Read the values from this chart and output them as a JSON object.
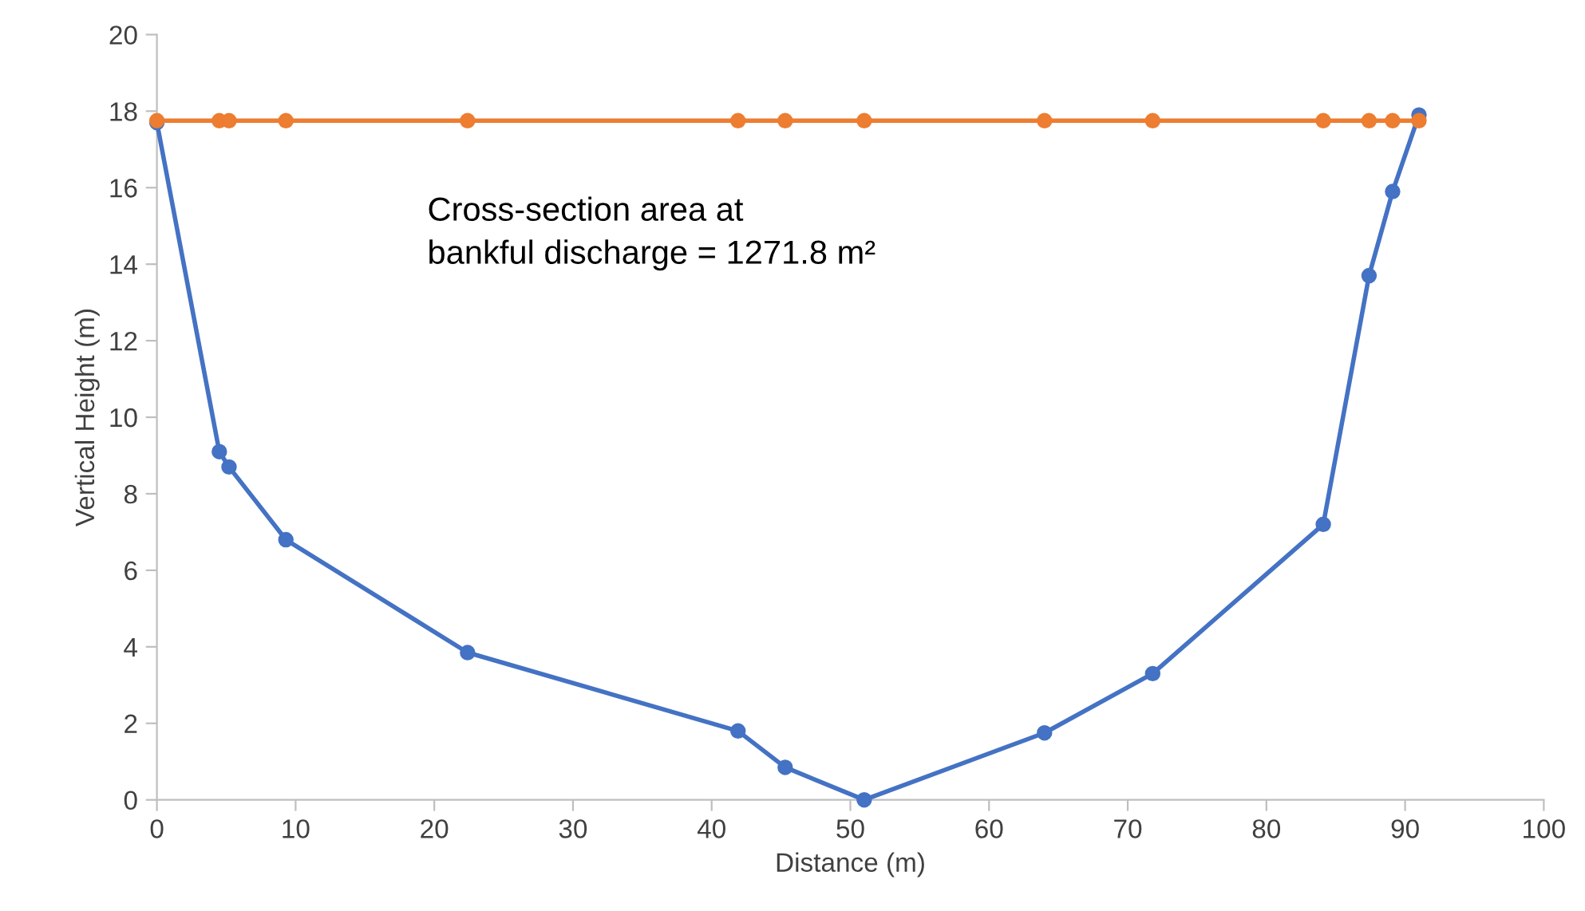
{
  "chart_data": {
    "type": "line",
    "xlabel": "Distance (m)",
    "ylabel": "Vertical Height (m)",
    "xlim": [
      0,
      100
    ],
    "xticks": [
      0,
      10,
      20,
      30,
      40,
      50,
      60,
      70,
      80,
      90,
      100
    ],
    "ylim": [
      0,
      20
    ],
    "yticks": [
      0,
      2,
      4,
      6,
      8,
      10,
      12,
      14,
      16,
      18,
      20
    ],
    "grid": false,
    "marker": "circle",
    "line_style": "solid",
    "annotations": [
      "Cross-section area at\nbankful discharge = 1271.8 m²"
    ],
    "series": [
      {
        "color": "#4472c4",
        "x": [
          0,
          4.5,
          5.2,
          9.3,
          22.4,
          41.9,
          45.3,
          51.0,
          64.0,
          71.8,
          84.1,
          87.4,
          89.1,
          91.0
        ],
        "values": [
          17.7,
          9.1,
          8.7,
          6.8,
          3.85,
          1.8,
          0.85,
          0,
          1.75,
          3.3,
          7.2,
          13.7,
          15.9,
          17.9
        ]
      },
      {
        "color": "#ed7d31",
        "x": [
          0,
          4.5,
          5.2,
          9.3,
          22.4,
          41.9,
          45.3,
          51.0,
          64.0,
          71.8,
          84.1,
          87.4,
          89.1,
          91.0
        ],
        "values": [
          17.75,
          17.75,
          17.75,
          17.75,
          17.75,
          17.75,
          17.75,
          17.75,
          17.75,
          17.75,
          17.75,
          17.75,
          17.75,
          17.75
        ]
      }
    ]
  }
}
